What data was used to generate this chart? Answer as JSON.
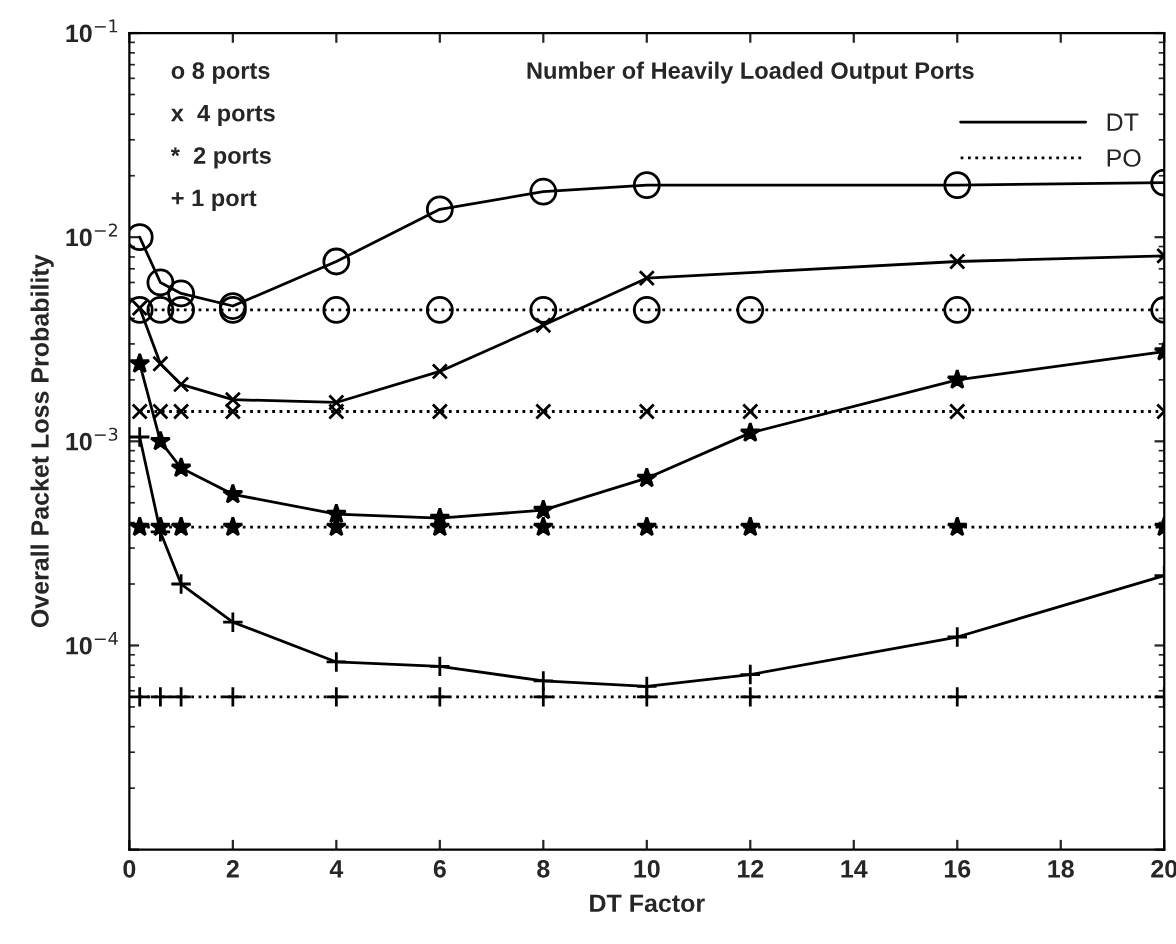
{
  "chart_data": {
    "type": "line",
    "xlabel": "DT Factor",
    "ylabel": "Overall Packet Loss Probability",
    "log": "y",
    "xlim": [
      0,
      20
    ],
    "xticks": [
      0,
      2,
      4,
      6,
      8,
      10,
      12,
      14,
      16,
      18,
      20
    ],
    "ylim": [
      1e-05,
      0.1
    ],
    "yticks": [
      {
        "value": 1e-05,
        "label": null
      },
      {
        "value": 0.0001,
        "label": "10$^{−4}$"
      },
      {
        "value": 0.001,
        "label": "10$^{−3}$"
      },
      {
        "value": 0.01,
        "label": "10$^{−2}$"
      },
      {
        "value": 0.1,
        "label": "10$^{−1}$"
      }
    ],
    "grid": false,
    "legend": "top right",
    "annotations": [
      "o 8 ports",
      "x  4 ports",
      "*  2 ports",
      "+ 1 port",
      "Number of Heavily Loaded Output Ports"
    ],
    "series": [
      {
        "name": "DT",
        "color": "#000000",
        "marker": "circle",
        "line_style": "solid",
        "x": [
          0.2,
          0.6,
          1,
          2,
          4,
          6,
          8,
          10,
          16,
          20
        ],
        "values": [
          0.01,
          0.006,
          0.0053,
          0.0046,
          0.0076,
          0.0137,
          0.0167,
          0.018,
          0.018,
          0.0185
        ]
      },
      {
        "name": "PO",
        "color": "#000000",
        "marker": "circle",
        "line_style": "dotted",
        "x": [
          0.2,
          0.6,
          1,
          2,
          4,
          6,
          8,
          10,
          12,
          16,
          20
        ],
        "values": [
          0.0044,
          0.0044,
          0.0044,
          0.0044,
          0.0044,
          0.0044,
          0.0044,
          0.0044,
          0.0044,
          0.0044,
          0.0044
        ]
      },
      {
        "color": "#000000",
        "marker": "x",
        "line_style": "solid",
        "x": [
          0.2,
          0.6,
          1,
          2,
          4,
          6,
          8,
          10,
          16,
          20
        ],
        "values": [
          0.0045,
          0.0024,
          0.0019,
          0.0016,
          0.00155,
          0.0022,
          0.0037,
          0.0063,
          0.0076,
          0.0081
        ]
      },
      {
        "color": "#000000",
        "marker": "x",
        "line_style": "dotted",
        "x": [
          0.2,
          0.6,
          1,
          2,
          4,
          6,
          8,
          10,
          12,
          16,
          20
        ],
        "values": [
          0.0014,
          0.0014,
          0.0014,
          0.0014,
          0.0014,
          0.0014,
          0.0014,
          0.0014,
          0.0014,
          0.0014,
          0.0014
        ]
      },
      {
        "color": "#000000",
        "marker": "star",
        "line_style": "solid",
        "x": [
          0.2,
          0.6,
          1,
          2,
          4,
          6,
          8,
          10,
          12,
          16,
          20
        ],
        "values": [
          0.0024,
          0.001,
          0.00074,
          0.00055,
          0.00044,
          0.00042,
          0.00046,
          0.00066,
          0.0011,
          0.002,
          0.00275
        ]
      },
      {
        "color": "#000000",
        "marker": "star",
        "line_style": "dotted",
        "x": [
          0.2,
          0.6,
          1,
          2,
          4,
          6,
          8,
          10,
          12,
          16,
          20
        ],
        "values": [
          0.00038,
          0.00038,
          0.00038,
          0.00038,
          0.00038,
          0.00038,
          0.00038,
          0.00038,
          0.00038,
          0.00038,
          0.00038
        ]
      },
      {
        "color": "#000000",
        "marker": "plus",
        "line_style": "solid",
        "x": [
          0.2,
          0.6,
          1,
          2,
          4,
          6,
          8,
          10,
          12,
          16,
          20
        ],
        "values": [
          0.00105,
          0.00036,
          0.0002,
          0.00013,
          8.3e-05,
          7.9e-05,
          6.7e-05,
          6.3e-05,
          7.2e-05,
          0.00011,
          0.00022
        ]
      },
      {
        "color": "#000000",
        "marker": "plus",
        "line_style": "dotted",
        "x": [
          0.2,
          0.6,
          1,
          2,
          4,
          6,
          8,
          10,
          12,
          16,
          20
        ],
        "values": [
          5.6e-05,
          5.6e-05,
          5.6e-05,
          5.6e-05,
          5.6e-05,
          5.6e-05,
          5.6e-05,
          5.6e-05,
          5.6e-05,
          5.6e-05,
          5.6e-05
        ]
      }
    ]
  }
}
